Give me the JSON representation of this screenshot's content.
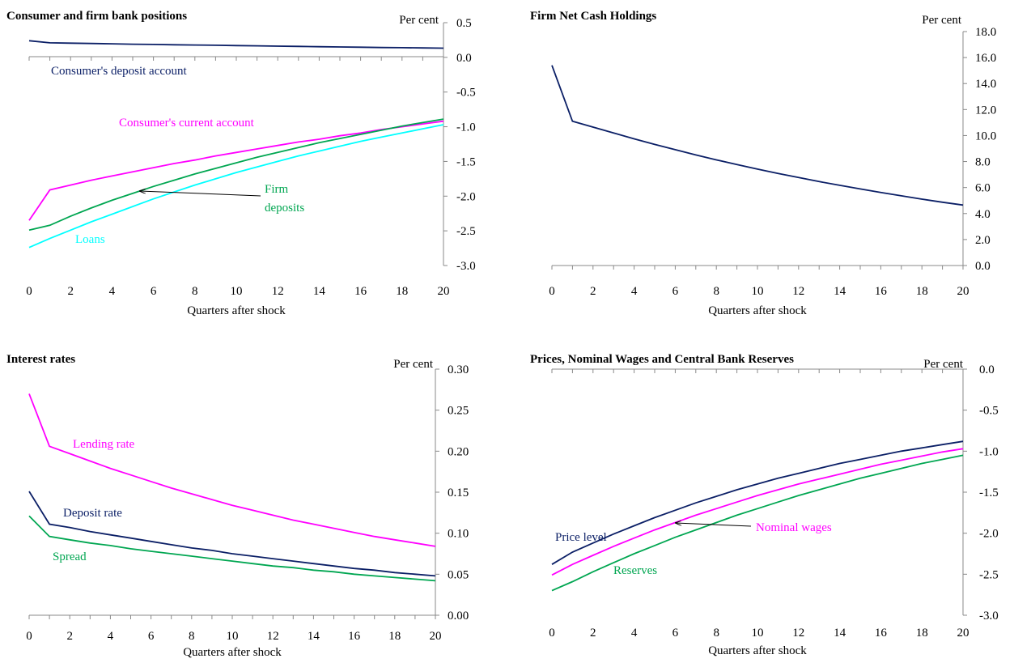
{
  "colors": {
    "navy": "#0b1f66",
    "magenta": "#ff00ff",
    "green": "#00a651",
    "cyan": "#00ffff",
    "axis": "#888888"
  },
  "chart_data": [
    {
      "type": "line",
      "title": "Consumer and firm bank positions",
      "unit": "Per cent",
      "xlabel": "Quarters after shock",
      "x": [
        0,
        1,
        2,
        3,
        4,
        5,
        6,
        7,
        8,
        9,
        10,
        11,
        12,
        13,
        14,
        15,
        16,
        17,
        18,
        19,
        20
      ],
      "xticks": [
        0,
        2,
        4,
        6,
        8,
        10,
        12,
        14,
        16,
        18,
        20
      ],
      "ylim": [
        -3.0,
        0.5
      ],
      "yticks": [
        "0.5",
        "0.0",
        "-0.5",
        "-1.0",
        "-1.5",
        "-2.0",
        "-2.5",
        "-3.0"
      ],
      "series": [
        {
          "name": "Consumer's deposit account",
          "color": "#0b1f66",
          "values": [
            0.24,
            0.21,
            0.205,
            0.2,
            0.195,
            0.19,
            0.186,
            0.182,
            0.178,
            0.174,
            0.17,
            0.166,
            0.162,
            0.158,
            0.154,
            0.15,
            0.146,
            0.142,
            0.139,
            0.136,
            0.133
          ]
        },
        {
          "name": "Consumer's current account",
          "color": "#ff00ff",
          "values": [
            -2.35,
            -1.91,
            -1.84,
            -1.77,
            -1.71,
            -1.65,
            -1.59,
            -1.53,
            -1.48,
            -1.42,
            -1.37,
            -1.32,
            -1.27,
            -1.22,
            -1.18,
            -1.13,
            -1.09,
            -1.04,
            -1.0,
            -0.96,
            -0.92
          ]
        },
        {
          "name": "Firm deposits",
          "color": "#00a651",
          "values": [
            -2.49,
            -2.42,
            -2.29,
            -2.17,
            -2.06,
            -1.96,
            -1.86,
            -1.77,
            -1.68,
            -1.6,
            -1.52,
            -1.44,
            -1.37,
            -1.3,
            -1.23,
            -1.17,
            -1.11,
            -1.05,
            -0.99,
            -0.94,
            -0.89
          ]
        },
        {
          "name": "Loans",
          "color": "#00ffff",
          "values": [
            -2.74,
            -2.61,
            -2.49,
            -2.37,
            -2.26,
            -2.15,
            -2.04,
            -1.94,
            -1.84,
            -1.75,
            -1.66,
            -1.58,
            -1.5,
            -1.42,
            -1.35,
            -1.28,
            -1.21,
            -1.15,
            -1.09,
            -1.03,
            -0.97
          ]
        }
      ],
      "annotations": [
        {
          "text": "Consumer's deposit account",
          "color": "#0b1f66"
        },
        {
          "text": "Consumer's current account",
          "color": "#ff00ff"
        },
        {
          "text": "Firm",
          "color": "#00a651"
        },
        {
          "text": "deposits",
          "color": "#00a651"
        },
        {
          "text": "Loans",
          "color": "#00ffff"
        }
      ]
    },
    {
      "type": "line",
      "title": "Firm Net Cash Holdings",
      "unit": "Per cent",
      "xlabel": "Quarters after shock",
      "x": [
        0,
        1,
        2,
        3,
        4,
        5,
        6,
        7,
        8,
        9,
        10,
        11,
        12,
        13,
        14,
        15,
        16,
        17,
        18,
        19,
        20
      ],
      "xticks": [
        0,
        2,
        4,
        6,
        8,
        10,
        12,
        14,
        16,
        18,
        20
      ],
      "ylim": [
        0.0,
        18.0
      ],
      "yticks": [
        "18.0",
        "16.0",
        "14.0",
        "12.0",
        "10.0",
        "8.0",
        "6.0",
        "4.0",
        "2.0",
        "0.0"
      ],
      "series": [
        {
          "color": "#0b1f66",
          "values": [
            15.4,
            11.1,
            10.65,
            10.2,
            9.75,
            9.32,
            8.91,
            8.51,
            8.13,
            7.77,
            7.42,
            7.09,
            6.77,
            6.46,
            6.17,
            5.89,
            5.62,
            5.36,
            5.11,
            4.87,
            4.65
          ]
        }
      ],
      "annotations": []
    },
    {
      "type": "line",
      "title": "Interest rates",
      "unit": "Per cent",
      "xlabel": "Quarters after shock",
      "x": [
        0,
        1,
        2,
        3,
        4,
        5,
        6,
        7,
        8,
        9,
        10,
        11,
        12,
        13,
        14,
        15,
        16,
        17,
        18,
        19,
        20
      ],
      "xticks": [
        0,
        2,
        4,
        6,
        8,
        10,
        12,
        14,
        16,
        18,
        20
      ],
      "ylim": [
        0.0,
        0.3
      ],
      "yticks": [
        "0.30",
        "0.25",
        "0.20",
        "0.15",
        "0.10",
        "0.05",
        "0.00"
      ],
      "series": [
        {
          "name": "Lending rate",
          "color": "#ff00ff",
          "values": [
            0.27,
            0.206,
            0.197,
            0.188,
            0.179,
            0.171,
            0.163,
            0.155,
            0.148,
            0.141,
            0.134,
            0.128,
            0.122,
            0.116,
            0.111,
            0.106,
            0.101,
            0.096,
            0.092,
            0.088,
            0.084
          ]
        },
        {
          "name": "Deposit rate",
          "color": "#0b1f66",
          "values": [
            0.151,
            0.111,
            0.107,
            0.102,
            0.098,
            0.094,
            0.09,
            0.086,
            0.082,
            0.079,
            0.075,
            0.072,
            0.069,
            0.066,
            0.063,
            0.06,
            0.057,
            0.055,
            0.052,
            0.05,
            0.048
          ]
        },
        {
          "name": "Spread",
          "color": "#00a651",
          "values": [
            0.121,
            0.096,
            0.092,
            0.088,
            0.085,
            0.081,
            0.078,
            0.075,
            0.072,
            0.069,
            0.066,
            0.063,
            0.06,
            0.058,
            0.055,
            0.053,
            0.05,
            0.048,
            0.046,
            0.044,
            0.042
          ]
        }
      ],
      "annotations": [
        {
          "text": "Lending rate",
          "color": "#ff00ff"
        },
        {
          "text": "Deposit rate",
          "color": "#0b1f66"
        },
        {
          "text": "Spread",
          "color": "#00a651"
        }
      ]
    },
    {
      "type": "line",
      "title": "Prices, Nominal Wages and Central Bank Reserves",
      "unit": "Per cent",
      "xlabel": "Quarters after shock",
      "x": [
        0,
        1,
        2,
        3,
        4,
        5,
        6,
        7,
        8,
        9,
        10,
        11,
        12,
        13,
        14,
        15,
        16,
        17,
        18,
        19,
        20
      ],
      "xticks": [
        0,
        2,
        4,
        6,
        8,
        10,
        12,
        14,
        16,
        18,
        20
      ],
      "ylim": [
        -3.0,
        0.0
      ],
      "yticks": [
        "0.0",
        "-0.5",
        "-1.0",
        "-1.5",
        "-2.0",
        "-2.5",
        "-3.0"
      ],
      "series": [
        {
          "name": "Price level",
          "color": "#0b1f66",
          "values": [
            -2.38,
            -2.23,
            -2.12,
            -2.01,
            -1.91,
            -1.81,
            -1.72,
            -1.63,
            -1.55,
            -1.47,
            -1.4,
            -1.33,
            -1.27,
            -1.21,
            -1.15,
            -1.1,
            -1.05,
            -1.0,
            -0.96,
            -0.92,
            -0.88
          ]
        },
        {
          "name": "Nominal wages",
          "color": "#ff00ff",
          "values": [
            -2.51,
            -2.38,
            -2.27,
            -2.16,
            -2.06,
            -1.96,
            -1.87,
            -1.78,
            -1.7,
            -1.62,
            -1.54,
            -1.47,
            -1.4,
            -1.34,
            -1.28,
            -1.22,
            -1.16,
            -1.11,
            -1.06,
            -1.01,
            -0.97
          ]
        },
        {
          "name": "Reserves",
          "color": "#00a651",
          "values": [
            -2.7,
            -2.59,
            -2.47,
            -2.36,
            -2.25,
            -2.15,
            -2.05,
            -1.96,
            -1.87,
            -1.78,
            -1.7,
            -1.62,
            -1.54,
            -1.47,
            -1.4,
            -1.33,
            -1.27,
            -1.21,
            -1.15,
            -1.1,
            -1.05
          ]
        }
      ],
      "annotations": [
        {
          "text": "Price level",
          "color": "#0b1f66"
        },
        {
          "text": "Nominal wages",
          "color": "#ff00ff"
        },
        {
          "text": "Reserves",
          "color": "#00a651"
        }
      ]
    }
  ]
}
